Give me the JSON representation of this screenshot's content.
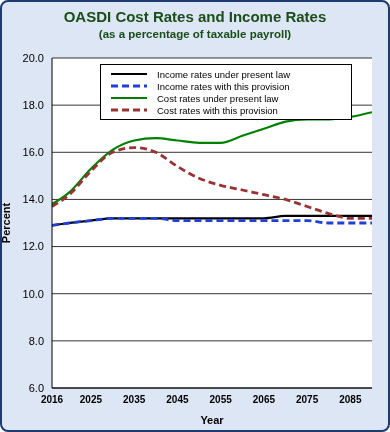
{
  "chart_data": {
    "type": "line",
    "title": "OASDI Cost Rates and Income Rates",
    "subtitle": "(as a percentage of taxable payroll)",
    "x_label": "Year",
    "y_label": "Percent",
    "x": [
      2016,
      2020,
      2025,
      2030,
      2035,
      2040,
      2045,
      2050,
      2055,
      2060,
      2065,
      2070,
      2075,
      2080,
      2085,
      2090
    ],
    "series": [
      {
        "name": "Income rates under present law",
        "color": "#000000",
        "line_style": "solid",
        "values": [
          12.9,
          13.0,
          13.1,
          13.2,
          13.2,
          13.2,
          13.2,
          13.2,
          13.2,
          13.2,
          13.2,
          13.3,
          13.3,
          13.3,
          13.3,
          13.3
        ]
      },
      {
        "name": "Income rates with this provision",
        "color": "#1f3fd6",
        "line_style": "dashed",
        "values": [
          12.9,
          13.0,
          13.1,
          13.2,
          13.2,
          13.2,
          13.1,
          13.1,
          13.1,
          13.1,
          13.1,
          13.1,
          13.1,
          13.0,
          13.0,
          13.0
        ]
      },
      {
        "name": "Cost rates under present law",
        "color": "#008000",
        "line_style": "solid",
        "values": [
          13.8,
          14.3,
          15.3,
          16.1,
          16.5,
          16.6,
          16.5,
          16.4,
          16.4,
          16.7,
          17.0,
          17.3,
          17.4,
          17.4,
          17.5,
          17.7
        ]
      },
      {
        "name": "Cost rates with this provision",
        "color": "#993333",
        "line_style": "dashed",
        "values": [
          13.7,
          14.2,
          15.2,
          16.0,
          16.2,
          16.0,
          15.4,
          14.9,
          14.6,
          14.4,
          14.2,
          14.0,
          13.7,
          13.4,
          13.2,
          13.2
        ]
      }
    ],
    "xlim": [
      2016,
      2090
    ],
    "xticks": [
      2016,
      2025,
      2035,
      2045,
      2055,
      2065,
      2075,
      2085
    ],
    "ylim": [
      6,
      20
    ],
    "yticks": [
      {
        "value": 6,
        "label": "6.0"
      },
      {
        "value": 8,
        "label": "8.0"
      },
      {
        "value": 10,
        "label": "10.0"
      },
      {
        "value": 12,
        "label": "12.0"
      },
      {
        "value": 14,
        "label": "14.0"
      },
      {
        "value": 16,
        "label": "16.0"
      },
      {
        "value": 18,
        "label": "18.0"
      },
      {
        "value": 20,
        "label": "20.0"
      }
    ],
    "grid": true,
    "legend": "top"
  }
}
